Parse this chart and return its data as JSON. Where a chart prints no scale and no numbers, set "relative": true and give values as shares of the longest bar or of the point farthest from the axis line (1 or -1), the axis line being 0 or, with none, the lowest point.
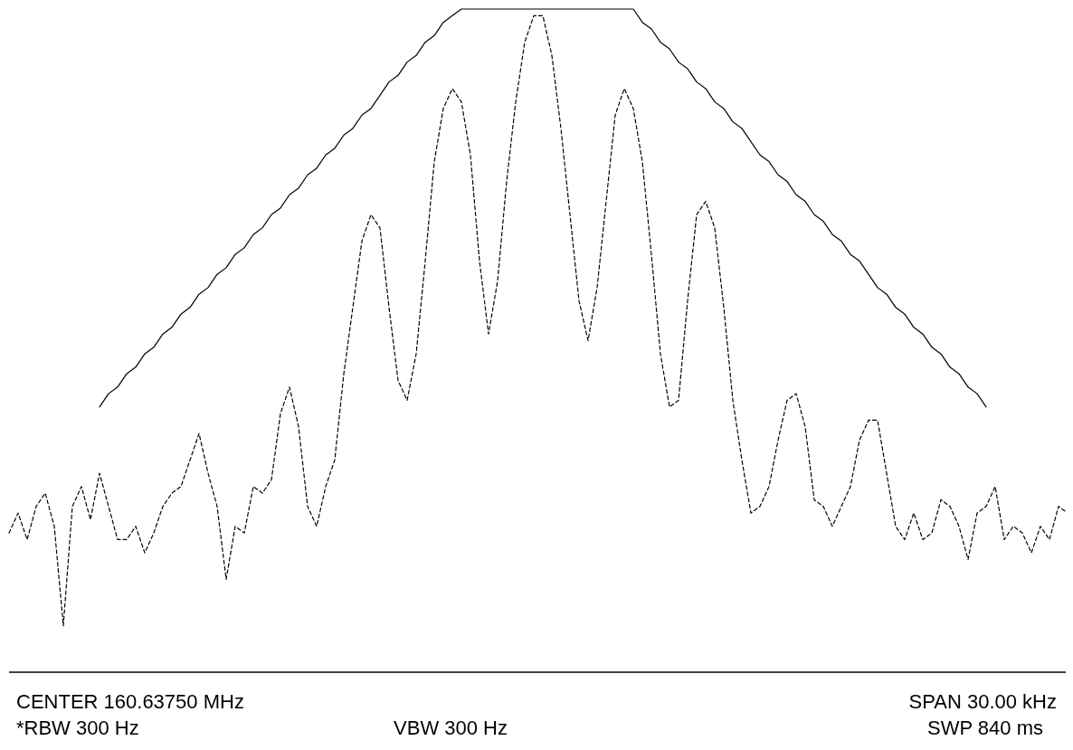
{
  "chart_data": {
    "type": "line",
    "relative": true,
    "categories": [
      null,
      null,
      null,
      null,
      null,
      null,
      null,
      null,
      null,
      null,
      null,
      null,
      null,
      null,
      null,
      null,
      null,
      null,
      null,
      null,
      null,
      null,
      null,
      null,
      null,
      null,
      null,
      null,
      null,
      null,
      null,
      null,
      null,
      null,
      null,
      null,
      null,
      null,
      null,
      null,
      null,
      null,
      null,
      null,
      null,
      null,
      null,
      null,
      null,
      null,
      null,
      null,
      null,
      null,
      null,
      null,
      null,
      null,
      null,
      null,
      null,
      null,
      null,
      null,
      null,
      null,
      null,
      null,
      null,
      null,
      null,
      null,
      null,
      null,
      null,
      null,
      null,
      null,
      null,
      null,
      null,
      null,
      null,
      null,
      null,
      null,
      null,
      null,
      null,
      null,
      null,
      null,
      null,
      null,
      null,
      null,
      null,
      null,
      null,
      null,
      null,
      null,
      null,
      null,
      null,
      null,
      null,
      null,
      null,
      null,
      null,
      null,
      null,
      null,
      null,
      null,
      null,
      null
    ],
    "series": [
      {
        "color": "#000000",
        "line_style": "dashed",
        "values": [
          0.21,
          0.24,
          0.2,
          0.25,
          0.27,
          0.22,
          0.07,
          0.25,
          0.28,
          0.23,
          0.3,
          0.25,
          0.2,
          0.2,
          0.22,
          0.18,
          0.21,
          0.25,
          0.27,
          0.28,
          0.32,
          0.36,
          0.3,
          0.25,
          0.14,
          0.22,
          0.21,
          0.28,
          0.27,
          0.29,
          0.39,
          0.43,
          0.37,
          0.25,
          0.22,
          0.28,
          0.32,
          0.45,
          0.55,
          0.65,
          0.69,
          0.67,
          0.55,
          0.44,
          0.41,
          0.48,
          0.62,
          0.77,
          0.85,
          0.88,
          0.86,
          0.78,
          0.62,
          0.51,
          0.59,
          0.74,
          0.86,
          0.95,
          0.99,
          0.99,
          0.93,
          0.82,
          0.69,
          0.56,
          0.5,
          0.58,
          0.71,
          0.84,
          0.88,
          0.85,
          0.77,
          0.63,
          0.48,
          0.4,
          0.41,
          0.56,
          0.69,
          0.71,
          0.67,
          0.55,
          0.41,
          0.32,
          0.24,
          0.25,
          0.28,
          0.35,
          0.41,
          0.42,
          0.37,
          0.26,
          0.25,
          0.22,
          0.25,
          0.28,
          0.35,
          0.38,
          0.38,
          0.3,
          0.22,
          0.2,
          0.24,
          0.2,
          0.21,
          0.26,
          0.25,
          0.22,
          0.17,
          0.24,
          0.25,
          0.28,
          0.2,
          0.22,
          0.21,
          0.18,
          0.22,
          0.2,
          0.25,
          0.24
        ]
      },
      {
        "color": "#000000",
        "line_style": "solid",
        "values": [
          null,
          null,
          null,
          null,
          null,
          null,
          null,
          null,
          null,
          null,
          0.4,
          0.42,
          0.43,
          0.45,
          0.46,
          0.48,
          0.49,
          0.51,
          0.52,
          0.54,
          0.55,
          0.57,
          0.58,
          0.6,
          0.61,
          0.63,
          0.64,
          0.66,
          0.67,
          0.69,
          0.7,
          0.72,
          0.73,
          0.75,
          0.76,
          0.78,
          0.79,
          0.81,
          0.82,
          0.84,
          0.85,
          0.87,
          0.89,
          0.9,
          0.92,
          0.93,
          0.95,
          0.96,
          0.98,
          0.99,
          1,
          1,
          1,
          1,
          1,
          1,
          1,
          1,
          1,
          1,
          1,
          1,
          1,
          1,
          1,
          1,
          1,
          1,
          1,
          1,
          0.98,
          0.97,
          0.95,
          0.94,
          0.92,
          0.91,
          0.89,
          0.88,
          0.86,
          0.85,
          0.83,
          0.82,
          0.8,
          0.78,
          0.77,
          0.75,
          0.74,
          0.72,
          0.71,
          0.69,
          0.68,
          0.66,
          0.65,
          0.63,
          0.62,
          0.6,
          0.58,
          0.57,
          0.55,
          0.54,
          0.52,
          0.51,
          0.49,
          0.48,
          0.46,
          0.45,
          0.43,
          0.42,
          0.4,
          null,
          null,
          null,
          null,
          null,
          null,
          null,
          null,
          null
        ]
      }
    ],
    "annotations": [
      "CENTER 160.63750 MHz",
      "SPAN 30.00 kHz",
      "*RBW 300 Hz",
      "VBW 300 Hz",
      "SWP 840 ms"
    ]
  }
}
